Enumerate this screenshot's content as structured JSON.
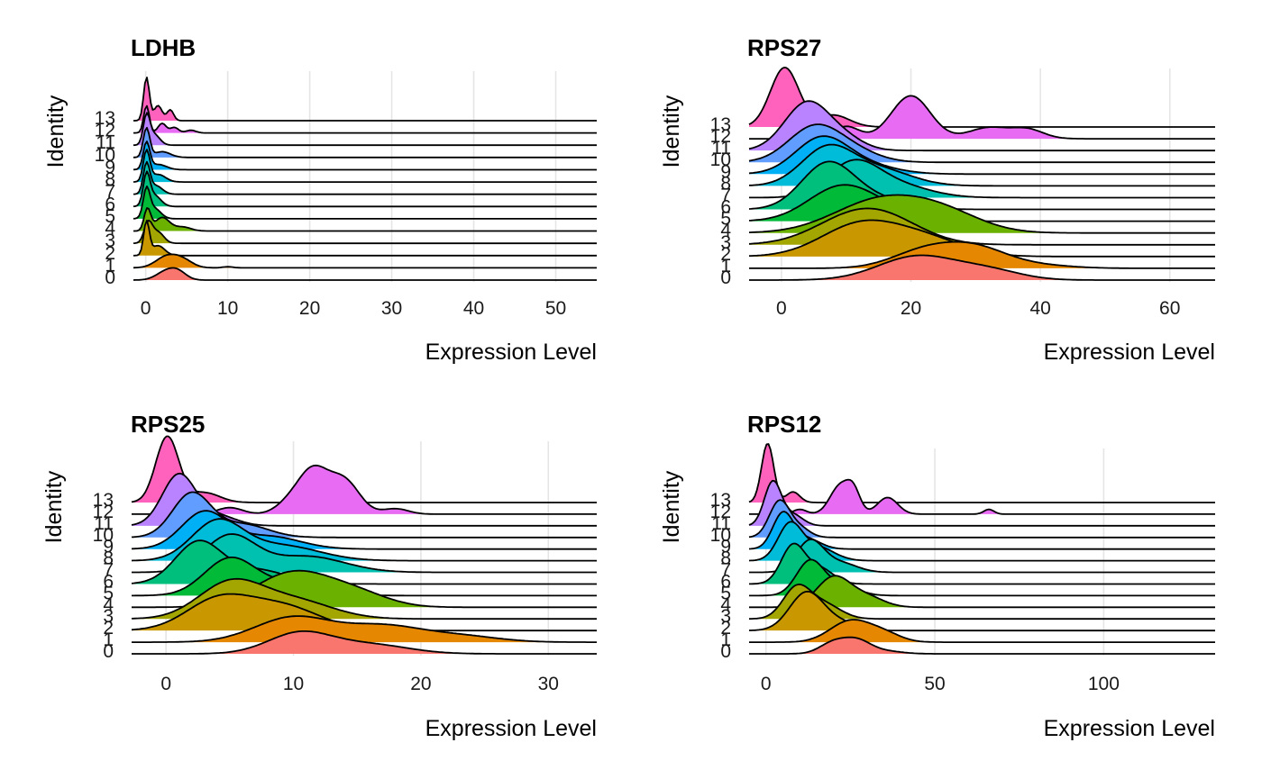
{
  "chart_data": [
    {
      "type": "ridgeline",
      "title": "LDHB",
      "xlabel": "Expression Level",
      "ylabel": "Identity",
      "xlim": [
        -1.5,
        55
      ],
      "xticks": [
        0,
        10,
        20,
        30,
        40,
        50
      ],
      "series": [
        {
          "name": "0",
          "color": "#F8766D",
          "peaks": [
            [
              2.5,
              0.55,
              1.2
            ],
            [
              4.0,
              0.45,
              1.0
            ]
          ],
          "height": 0.9
        },
        {
          "name": "1",
          "color": "#E58700",
          "peaks": [
            [
              2.5,
              0.5,
              1.3
            ],
            [
              4.5,
              0.35,
              1.2
            ],
            [
              10,
              0.05,
              0.6
            ]
          ],
          "height": 1.0
        },
        {
          "name": "2",
          "color": "#C99800",
          "peaks": [
            [
              0.1,
              1.0,
              0.35
            ],
            [
              1.5,
              0.3,
              0.8
            ]
          ],
          "height": 2.6
        },
        {
          "name": "3",
          "color": "#A3A500",
          "peaks": [
            [
              0.3,
              0.9,
              0.5
            ],
            [
              1.5,
              0.5,
              0.7
            ]
          ],
          "height": 1.7
        },
        {
          "name": "4",
          "color": "#6BB100",
          "peaks": [
            [
              0.2,
              0.8,
              0.4
            ],
            [
              2.0,
              0.5,
              0.9
            ],
            [
              4.5,
              0.15,
              1.0
            ]
          ],
          "height": 1.7
        },
        {
          "name": "5",
          "color": "#00BA38",
          "peaks": [
            [
              0.1,
              1.0,
              0.4
            ],
            [
              1.0,
              0.4,
              0.8
            ]
          ],
          "height": 2.4
        },
        {
          "name": "6",
          "color": "#00BF7D",
          "peaks": [
            [
              0.1,
              1.0,
              0.4
            ],
            [
              1.0,
              0.4,
              0.8
            ]
          ],
          "height": 2.6
        },
        {
          "name": "7",
          "color": "#00C0AF",
          "peaks": [
            [
              0.1,
              1.0,
              0.4
            ],
            [
              1.2,
              0.3,
              0.8
            ]
          ],
          "height": 2.4
        },
        {
          "name": "8",
          "color": "#00BCD8",
          "peaks": [
            [
              0.1,
              1.0,
              0.4
            ],
            [
              1.5,
              0.25,
              0.9
            ]
          ],
          "height": 2.4
        },
        {
          "name": "9",
          "color": "#00B0F6",
          "peaks": [
            [
              0.1,
              1.0,
              0.4
            ],
            [
              1.5,
              0.2,
              1.0
            ]
          ],
          "height": 2.1
        },
        {
          "name": "10",
          "color": "#619CFF",
          "peaks": [
            [
              0.1,
              1.0,
              0.4
            ],
            [
              2.0,
              0.2,
              1.0
            ]
          ],
          "height": 2.2
        },
        {
          "name": "11",
          "color": "#B983FF",
          "peaks": [
            [
              0.1,
              1.0,
              0.4
            ],
            [
              1.0,
              0.4,
              0.7
            ]
          ],
          "height": 2.4
        },
        {
          "name": "12",
          "color": "#E76BF3",
          "peaks": [
            [
              0.1,
              1.0,
              0.35
            ],
            [
              2.0,
              0.35,
              0.5
            ],
            [
              3.5,
              0.2,
              0.5
            ],
            [
              5.5,
              0.1,
              0.6
            ]
          ],
          "height": 2.0
        },
        {
          "name": "13",
          "color": "#FF62BC",
          "peaks": [
            [
              0.1,
              1.0,
              0.35
            ],
            [
              1.5,
              0.35,
              0.5
            ],
            [
              3.0,
              0.25,
              0.4
            ]
          ],
          "height": 3.2
        }
      ]
    },
    {
      "type": "ridgeline",
      "title": "RPS27",
      "xlabel": "Expression Level",
      "ylabel": "Identity",
      "xlim": [
        -5,
        67
      ],
      "xticks": [
        0,
        20,
        40,
        60
      ],
      "series": [
        {
          "name": "0",
          "color": "#F8766D",
          "peaks": [
            [
              21,
              0.9,
              6
            ],
            [
              32,
              0.35,
              5
            ]
          ],
          "height": 1.5
        },
        {
          "name": "1",
          "color": "#E58700",
          "peaks": [
            [
              22,
              0.6,
              5
            ],
            [
              30,
              0.7,
              5
            ],
            [
              40,
              0.1,
              5
            ]
          ],
          "height": 1.6
        },
        {
          "name": "2",
          "color": "#C99800",
          "peaks": [
            [
              12,
              0.8,
              6
            ],
            [
              22,
              0.45,
              6
            ]
          ],
          "height": 2.2
        },
        {
          "name": "3",
          "color": "#A3A500",
          "peaks": [
            [
              10,
              0.6,
              6
            ],
            [
              16,
              0.7,
              6
            ]
          ],
          "height": 2.2
        },
        {
          "name": "4",
          "color": "#6BB100",
          "peaks": [
            [
              15,
              0.8,
              7
            ],
            [
              25,
              0.45,
              6
            ]
          ],
          "height": 2.3
        },
        {
          "name": "5",
          "color": "#00BA38",
          "peaks": [
            [
              9,
              0.9,
              5
            ],
            [
              16,
              0.25,
              5
            ]
          ],
          "height": 2.2
        },
        {
          "name": "6",
          "color": "#00BF7D",
          "peaks": [
            [
              7,
              1.0,
              4
            ],
            [
              14,
              0.25,
              5
            ]
          ],
          "height": 2.9
        },
        {
          "name": "7",
          "color": "#00C0AF",
          "peaks": [
            [
              11,
              0.85,
              4
            ],
            [
              18,
              0.3,
              5
            ]
          ],
          "height": 2.3
        },
        {
          "name": "8",
          "color": "#00BCD8",
          "peaks": [
            [
              7,
              1.0,
              4
            ],
            [
              15,
              0.45,
              5
            ]
          ],
          "height": 2.5
        },
        {
          "name": "9",
          "color": "#00B0F6",
          "peaks": [
            [
              6,
              1.0,
              4
            ],
            [
              12,
              0.3,
              5
            ]
          ],
          "height": 2.3
        },
        {
          "name": "10",
          "color": "#619CFF",
          "peaks": [
            [
              5,
              1.0,
              4
            ],
            [
              11,
              0.3,
              4
            ]
          ],
          "height": 2.3
        },
        {
          "name": "11",
          "color": "#B983FF",
          "peaks": [
            [
              4,
              1.0,
              3.5
            ],
            [
              10,
              0.2,
              3
            ]
          ],
          "height": 3.0
        },
        {
          "name": "12",
          "color": "#E76BF3",
          "peaks": [
            [
              10,
              0.2,
              2
            ],
            [
              20,
              0.7,
              3
            ],
            [
              32,
              0.18,
              3
            ],
            [
              38,
              0.15,
              2.5
            ]
          ],
          "height": 2.6
        },
        {
          "name": "13",
          "color": "#FF62BC",
          "peaks": [
            [
              0.5,
              1.0,
              2.2
            ],
            [
              8,
              0.2,
              2.5
            ]
          ],
          "height": 3.6
        }
      ]
    },
    {
      "type": "ridgeline",
      "title": "RPS25",
      "xlabel": "Expression Level",
      "ylabel": "Identity",
      "xlim": [
        -2.7,
        33.8
      ],
      "xticks": [
        0,
        10,
        20,
        30
      ],
      "series": [
        {
          "name": "0",
          "color": "#F8766D",
          "peaks": [
            [
              10.5,
              0.9,
              2.5
            ],
            [
              16,
              0.4,
              3
            ]
          ],
          "height": 1.3
        },
        {
          "name": "1",
          "color": "#E58700",
          "peaks": [
            [
              10,
              0.8,
              3
            ],
            [
              17,
              0.5,
              3
            ],
            [
              23,
              0.2,
              3
            ]
          ],
          "height": 1.5
        },
        {
          "name": "2",
          "color": "#C99800",
          "peaks": [
            [
              4,
              0.7,
              2.5
            ],
            [
              9,
              0.6,
              3
            ]
          ],
          "height": 2.1
        },
        {
          "name": "3",
          "color": "#A3A500",
          "peaks": [
            [
              5,
              0.85,
              2.5
            ],
            [
              10,
              0.45,
              3
            ]
          ],
          "height": 2.3
        },
        {
          "name": "4",
          "color": "#6BB100",
          "peaks": [
            [
              10,
              0.85,
              3
            ],
            [
              15,
              0.3,
              2.5
            ]
          ],
          "height": 2.1
        },
        {
          "name": "5",
          "color": "#00BA38",
          "peaks": [
            [
              5,
              0.9,
              2
            ],
            [
              10,
              0.3,
              2.5
            ]
          ],
          "height": 2.2
        },
        {
          "name": "6",
          "color": "#00BF7D",
          "peaks": [
            [
              2.5,
              1.0,
              1.8
            ],
            [
              7,
              0.35,
              2.5
            ]
          ],
          "height": 2.5
        },
        {
          "name": "7",
          "color": "#00C0AF",
          "peaks": [
            [
              5,
              0.9,
              2
            ],
            [
              11,
              0.4,
              3
            ]
          ],
          "height": 2.2
        },
        {
          "name": "8",
          "color": "#00BCD8",
          "peaks": [
            [
              4,
              1.0,
              2
            ],
            [
              9,
              0.4,
              3
            ]
          ],
          "height": 2.4
        },
        {
          "name": "9",
          "color": "#00B0F6",
          "peaks": [
            [
              3,
              1.0,
              1.8
            ],
            [
              8,
              0.35,
              2.5
            ]
          ],
          "height": 2.2
        },
        {
          "name": "10",
          "color": "#619CFF",
          "peaks": [
            [
              2,
              1.0,
              1.5
            ],
            [
              6,
              0.3,
              2
            ]
          ],
          "height": 2.6
        },
        {
          "name": "11",
          "color": "#B983FF",
          "peaks": [
            [
              1,
              1.0,
              1.3
            ],
            [
              4,
              0.2,
              1.5
            ]
          ],
          "height": 3.0
        },
        {
          "name": "12",
          "color": "#E76BF3",
          "peaks": [
            [
              5,
              0.12,
              1
            ],
            [
              9.5,
              0.15,
              1
            ],
            [
              11.5,
              0.8,
              1.2
            ],
            [
              14,
              0.6,
              1.2
            ],
            [
              18,
              0.1,
              1
            ]
          ],
          "height": 2.8
        },
        {
          "name": "13",
          "color": "#FF62BC",
          "peaks": [
            [
              0.1,
              1.0,
              0.9
            ],
            [
              3,
              0.15,
              1.2
            ]
          ],
          "height": 3.8
        }
      ]
    },
    {
      "type": "ridgeline",
      "title": "RPS12",
      "xlabel": "Expression Level",
      "ylabel": "Identity",
      "xlim": [
        -5,
        133
      ],
      "xticks": [
        0,
        50,
        100
      ],
      "series": [
        {
          "name": "0",
          "color": "#F8766D",
          "peaks": [
            [
              20,
              0.8,
              4
            ],
            [
              27,
              0.9,
              4
            ],
            [
              35,
              0.2,
              5
            ]
          ],
          "height": 1.1
        },
        {
          "name": "1",
          "color": "#E58700",
          "peaks": [
            [
              25,
              0.8,
              6
            ],
            [
              35,
              0.3,
              5
            ]
          ],
          "height": 1.5
        },
        {
          "name": "2",
          "color": "#C99800",
          "peaks": [
            [
              12,
              1.0,
              5
            ],
            [
              22,
              0.2,
              5
            ]
          ],
          "height": 2.6
        },
        {
          "name": "3",
          "color": "#A3A500",
          "peaks": [
            [
              9,
              0.9,
              4
            ],
            [
              17,
              0.45,
              5
            ]
          ],
          "height": 2.3
        },
        {
          "name": "4",
          "color": "#6BB100",
          "peaks": [
            [
              20,
              0.9,
              5
            ],
            [
              30,
              0.3,
              5
            ]
          ],
          "height": 2.1
        },
        {
          "name": "5",
          "color": "#00BA38",
          "peaks": [
            [
              13,
              1.0,
              4
            ],
            [
              22,
              0.3,
              5
            ]
          ],
          "height": 2.4
        },
        {
          "name": "6",
          "color": "#00BF7D",
          "peaks": [
            [
              8,
              1.0,
              3.5
            ],
            [
              16,
              0.4,
              4
            ]
          ],
          "height": 2.7
        },
        {
          "name": "7",
          "color": "#00C0AF",
          "peaks": [
            [
              13,
              1.0,
              4
            ],
            [
              22,
              0.3,
              5
            ]
          ],
          "height": 2.2
        },
        {
          "name": "8",
          "color": "#00BCD8",
          "peaks": [
            [
              7,
              1.0,
              3.5
            ],
            [
              15,
              0.4,
              5
            ]
          ],
          "height": 2.6
        },
        {
          "name": "9",
          "color": "#00B0F6",
          "peaks": [
            [
              5,
              1.0,
              3
            ],
            [
              12,
              0.3,
              4
            ]
          ],
          "height": 2.5
        },
        {
          "name": "10",
          "color": "#619CFF",
          "peaks": [
            [
              4,
              1.0,
              3
            ],
            [
              10,
              0.25,
              3
            ]
          ],
          "height": 2.5
        },
        {
          "name": "11",
          "color": "#B983FF",
          "peaks": [
            [
              2,
              1.0,
              2.5
            ],
            [
              8,
              0.25,
              3
            ]
          ],
          "height": 3.0
        },
        {
          "name": "12",
          "color": "#E76BF3",
          "peaks": [
            [
              10,
              0.1,
              2
            ],
            [
              22,
              0.6,
              3
            ],
            [
              26,
              0.4,
              2
            ],
            [
              36,
              0.35,
              3
            ],
            [
              66,
              0.1,
              1.5
            ]
          ],
          "height": 2.3
        },
        {
          "name": "13",
          "color": "#FF62BC",
          "peaks": [
            [
              0.5,
              1.0,
              1.8
            ],
            [
              8,
              0.18,
              2
            ]
          ],
          "height": 3.9
        }
      ]
    }
  ]
}
